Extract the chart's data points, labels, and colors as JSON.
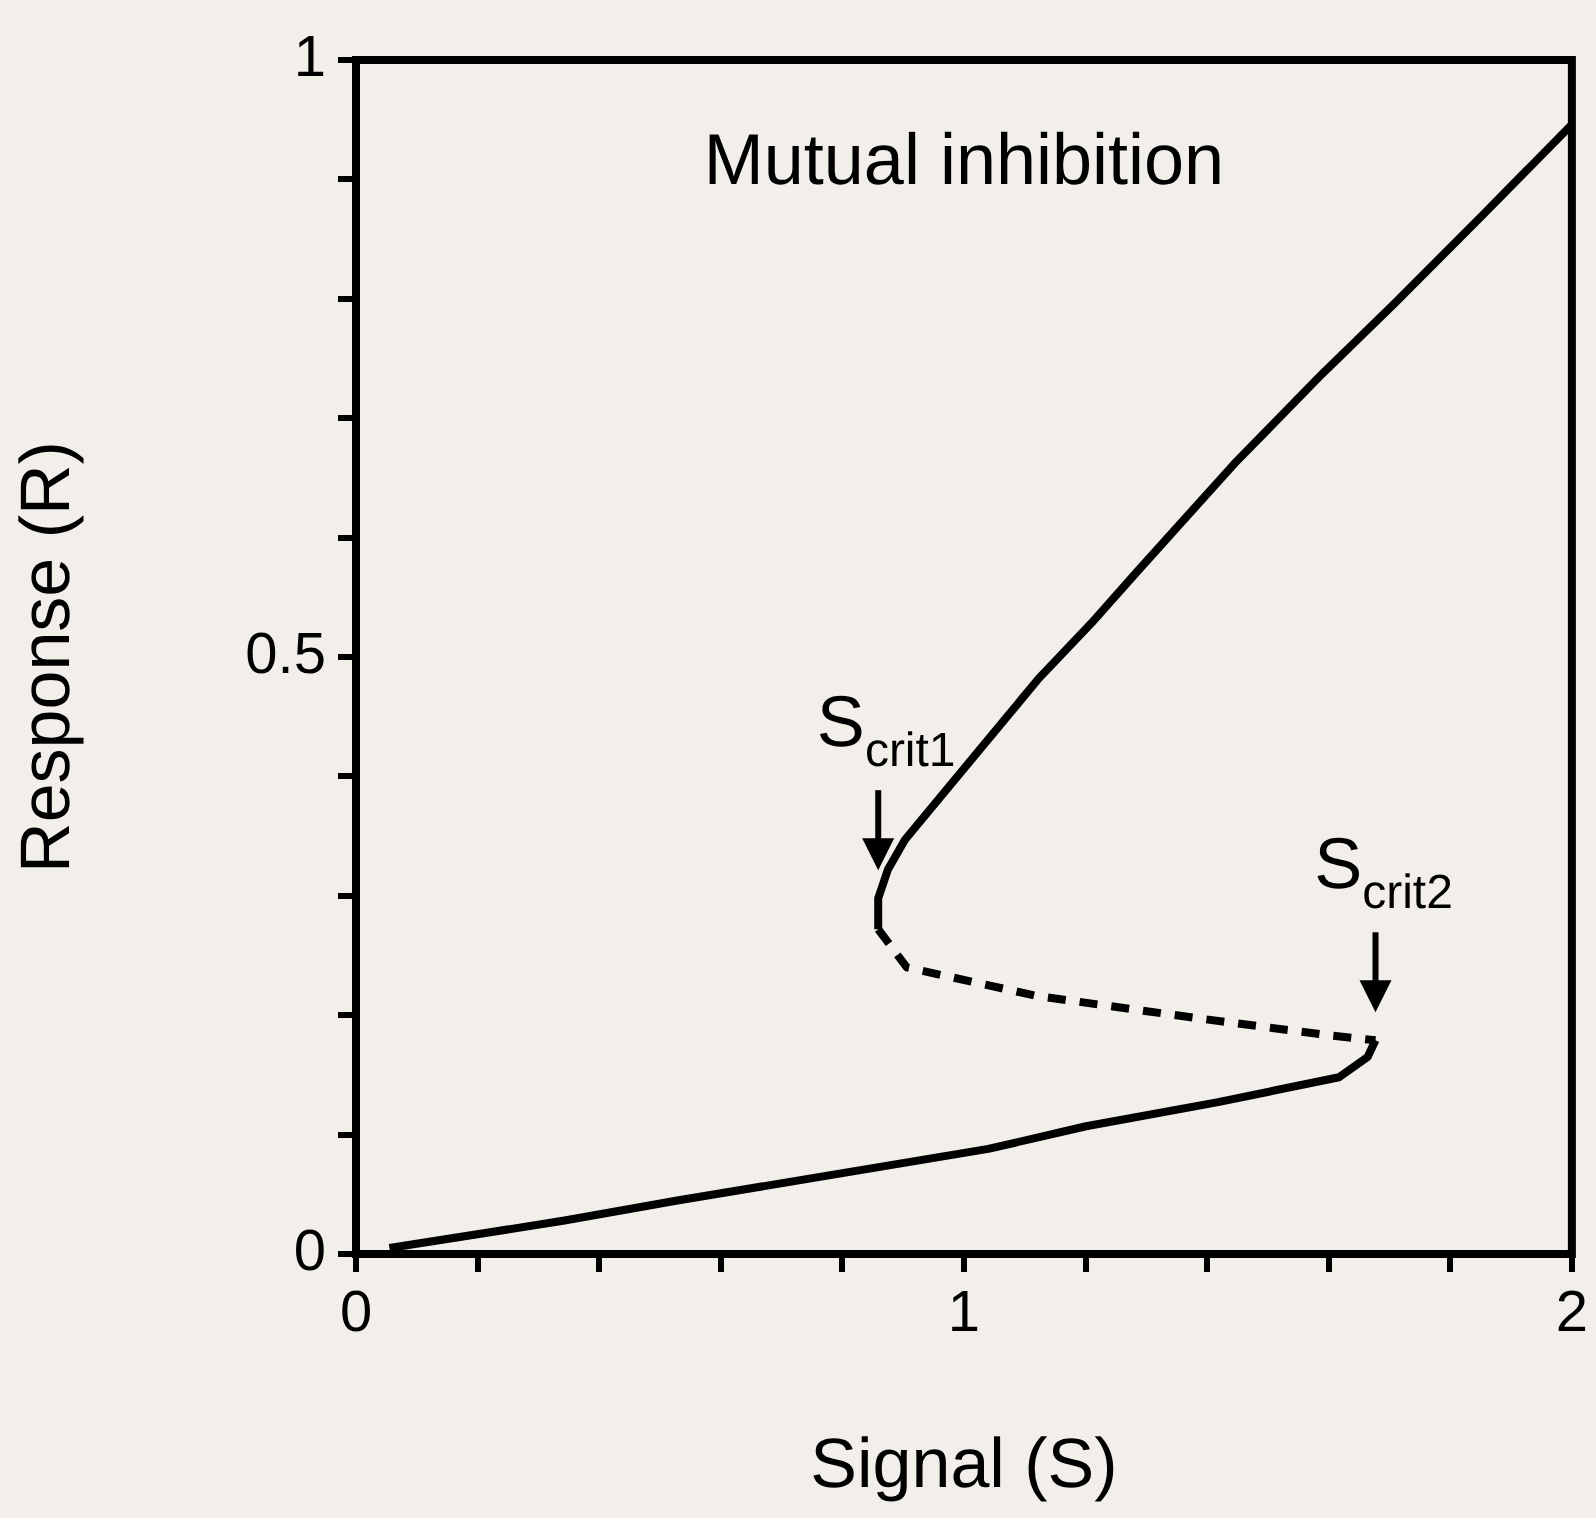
{
  "chart_data": {
    "type": "line",
    "xlabel": "Signal (S)",
    "ylabel": "Response (R)",
    "annotations": [
      "Mutual inhibition",
      {
        "text": "S$_{crit1}$",
        "x": 0.859,
        "y": 0.298
      },
      {
        "text": "S$_{crit2}$",
        "x": 1.677,
        "y": 0.179
      }
    ],
    "series": [
      {
        "color": "#000000",
        "line_style": "solid",
        "x": [
          0.859,
          0.859,
          0.875,
          0.903,
          1.123,
          1.209,
          1.284,
          1.445,
          1.589,
          1.708,
          1.855,
          2.0
        ],
        "values": [
          0.272,
          0.298,
          0.322,
          0.347,
          0.482,
          0.528,
          0.571,
          0.662,
          0.737,
          0.796,
          0.871,
          0.946
        ]
      },
      {
        "color": "#000000",
        "line_style": "dashed",
        "x": [
          0.859,
          0.906,
          1.121,
          1.391,
          1.603,
          1.677
        ],
        "values": [
          0.272,
          0.24,
          0.216,
          0.197,
          0.183,
          0.179
        ]
      },
      {
        "color": "#000000",
        "line_style": "solid",
        "x": [
          0.055,
          0.343,
          0.531,
          1.04,
          1.201,
          1.416,
          1.617,
          1.664,
          1.677
        ],
        "values": [
          0.005,
          0.028,
          0.045,
          0.088,
          0.107,
          0.127,
          0.148,
          0.165,
          0.179
        ]
      }
    ],
    "xlim": [
      0,
      2
    ],
    "ylim": [
      0,
      1
    ],
    "xticks": [
      0,
      {
        "value": 0.2,
        "label": null
      },
      {
        "value": 0.4,
        "label": null
      },
      {
        "value": 0.6,
        "label": null
      },
      {
        "value": 0.8,
        "label": null
      },
      1,
      {
        "value": 1.2,
        "label": null
      },
      {
        "value": 1.4,
        "label": null
      },
      {
        "value": 1.6,
        "label": null
      },
      {
        "value": 1.8,
        "label": null
      },
      2
    ],
    "yticks": [
      0,
      {
        "value": 0.1,
        "label": null
      },
      {
        "value": 0.2,
        "label": null
      },
      {
        "value": 0.3,
        "label": null
      },
      {
        "value": 0.4,
        "label": null
      },
      {
        "value": 0.5,
        "label": "0.5"
      },
      {
        "value": 0.6,
        "label": null
      },
      {
        "value": 0.7,
        "label": null
      },
      {
        "value": 0.8,
        "label": null
      },
      {
        "value": 0.9,
        "label": null
      },
      1
    ],
    "grid": false,
    "legend": false,
    "marker": "none"
  }
}
